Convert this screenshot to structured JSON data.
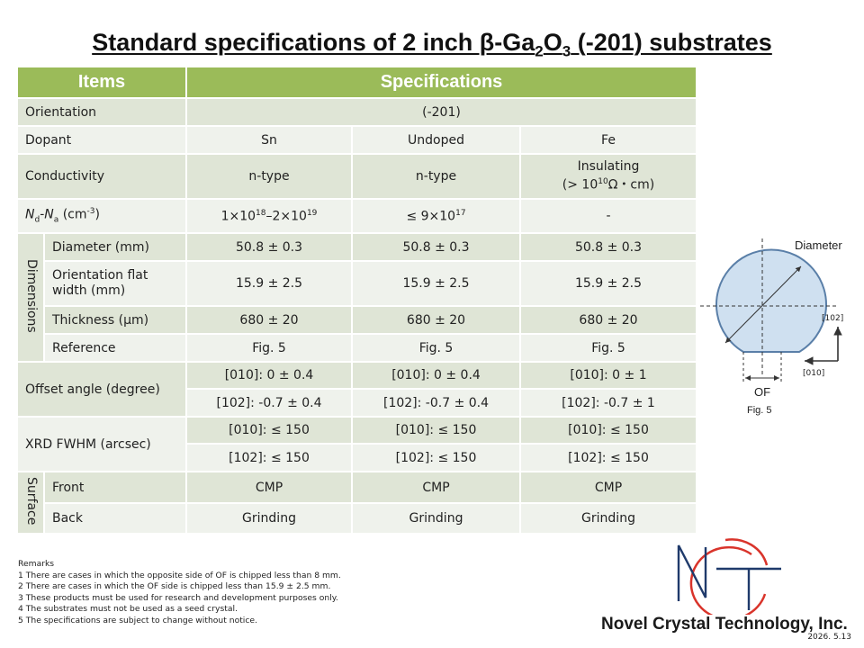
{
  "title": {
    "part1": "Standard specifications of 2 inch β-Ga",
    "sub1": "2",
    "part2": "O",
    "sub2": "3",
    "part3": " (-201) substrates"
  },
  "table": {
    "headers": {
      "items": "Items",
      "specifications": "Specifications"
    },
    "orientation": {
      "label": "Orientation",
      "value": "(-201)"
    },
    "dopant": {
      "label": "Dopant",
      "values": [
        "Sn",
        "Undoped",
        "Fe"
      ]
    },
    "conductivity": {
      "label": "Conductivity",
      "values": [
        "n-type",
        "n-type"
      ],
      "insulating_line1": "Insulating",
      "insulating_line2_pre": "(> 10",
      "insulating_line2_sup": "10",
      "insulating_line2_post": "Ω・cm)"
    },
    "ndna": {
      "label_n": "N",
      "label_d": "d",
      "label_dash": "-",
      "label_n2": "N",
      "label_a": "a",
      "label_unit": " (cm",
      "label_exp": "-3",
      "label_close": ")",
      "sn_pre": "1×10",
      "sn_exp1": "18",
      "sn_mid": "–2×10",
      "sn_exp2": "19",
      "undoped_pre": "≤ 9×10",
      "undoped_exp": "17",
      "fe": "-"
    },
    "dimensions": {
      "group_label": "Dimensions",
      "diameter": {
        "label": "Diameter (mm)",
        "values": [
          "50.8 ± 0.3",
          "50.8 ± 0.3",
          "50.8 ± 0.3"
        ]
      },
      "of_width": {
        "label": "Orientation flat width (mm)",
        "values": [
          "15.9 ± 2.5",
          "15.9 ± 2.5",
          "15.9 ± 2.5"
        ]
      },
      "thickness": {
        "label": "Thickness (μm)",
        "values": [
          "680 ± 20",
          "680 ± 20",
          "680 ± 20"
        ]
      },
      "reference": {
        "label": "Reference",
        "values": [
          "Fig. 5",
          "Fig. 5",
          "Fig. 5"
        ]
      }
    },
    "offset": {
      "label": "Offset angle (degree)",
      "row1": [
        "[010]: 0 ± 0.4",
        "[010]: 0 ± 0.4",
        "[010]: 0 ± 1"
      ],
      "row2": [
        "[102]: -0.7 ± 0.4",
        "[102]: -0.7 ± 0.4",
        "[102]: -0.7 ± 1"
      ]
    },
    "xrd": {
      "label": "XRD FWHM (arcsec)",
      "row1": [
        "[010]: ≤ 150",
        "[010]: ≤ 150",
        "[010]: ≤ 150"
      ],
      "row2": [
        "[102]: ≤ 150",
        "[102]: ≤ 150",
        "[102]: ≤ 150"
      ]
    },
    "surface": {
      "group_label": "Surface",
      "front": {
        "label": "Front",
        "values": [
          "CMP",
          "CMP",
          "CMP"
        ]
      },
      "back": {
        "label": "Back",
        "values": [
          "Grinding",
          "Grinding",
          "Grinding"
        ]
      }
    }
  },
  "remarks": [
    "Remarks",
    "1 There are cases in which the opposite side of OF is chipped less than 8 mm.",
    "2 There are cases in which the OF side is chipped less than 15.9 ± 2.5 mm.",
    "3 These products must be used for research and development purposes only.",
    "4 The substrates must not be used as a seed crystal.",
    "5 The specifications are subject to change without notice."
  ],
  "figure": {
    "diameter_label": "Diameter",
    "dir_102": "[102]",
    "dir_010": "[010]",
    "of_label": "OF",
    "caption": "Fig. 5"
  },
  "company": "Novel Crystal Technology, Inc.",
  "date": "2026. 5.13",
  "colors": {
    "header_green": "#9bbb59",
    "row_dark": "#dfe5d6",
    "row_light": "#eff2ec",
    "wafer_fill": "#cfe0f0",
    "logo_red": "#d9342b",
    "logo_navy": "#1f3a6b"
  }
}
